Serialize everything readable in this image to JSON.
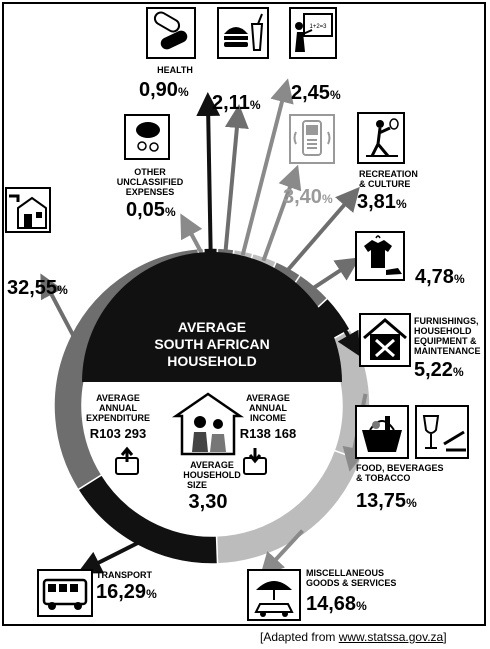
{
  "center": {
    "title_lines": [
      "AVERAGE",
      "SOUTH AFRICAN",
      "HOUSEHOLD"
    ],
    "expenditure_lines": [
      "AVERAGE",
      "ANNUAL",
      "EXPENDITURE"
    ],
    "expenditure_value": "R103 293",
    "income_lines": [
      "AVERAGE",
      "ANNUAL",
      "INCOME"
    ],
    "income_value": "R138 168",
    "size_lines": [
      "AVERAGE",
      "HOUSEHOLD",
      "SIZE"
    ],
    "size_value": "3,30"
  },
  "segments": [
    {
      "id": "housing",
      "pct_text": "32,55",
      "label_lines": [],
      "icon": "house-tap-icon"
    },
    {
      "id": "other",
      "pct_text": "0,05",
      "label_lines": [
        "OTHER",
        "UNCLASSIFIED",
        "EXPENSES"
      ],
      "icon": "piggy-bank-icon"
    },
    {
      "id": "health",
      "pct_text": "0,90",
      "label_lines": [
        "HEALTH"
      ],
      "icon": "pills-icon"
    },
    {
      "id": "food-out",
      "pct_text": "2,11",
      "label_lines": [],
      "icon": "burger-drink-icon"
    },
    {
      "id": "education",
      "pct_text": "2,45",
      "label_lines": [],
      "icon": "teacher-board-icon"
    },
    {
      "id": "communication",
      "pct_text": "3,40",
      "label_lines": [],
      "icon": "mobile-phone-icon"
    },
    {
      "id": "recreation",
      "pct_text": "3,81",
      "label_lines": [
        "RECREATION",
        "& CULTURE"
      ],
      "icon": "tennis-player-icon"
    },
    {
      "id": "clothing",
      "pct_text": "4,78",
      "label_lines": [],
      "icon": "shirt-shoe-icon"
    },
    {
      "id": "furnishings",
      "pct_text": "5,22",
      "label_lines": [
        "FURNISHINGS,",
        "HOUSEHOLD",
        "EQUIPMENT &",
        "MAINTENANCE"
      ],
      "icon": "house-tools-icon"
    },
    {
      "id": "food",
      "pct_text": "13,75",
      "label_lines": [
        "FOOD, BEVERAGES",
        "& TOBACCO"
      ],
      "icon": "food-basket-wine-icon"
    },
    {
      "id": "misc",
      "pct_text": "14,68",
      "label_lines": [
        "MISCELLANEOUS",
        "GOODS & SERVICES"
      ],
      "icon": "umbrella-car-icon"
    },
    {
      "id": "transport",
      "pct_text": "16,29",
      "label_lines": [
        "TRANSPORT"
      ],
      "icon": "bus-icon"
    }
  ],
  "percent_sign": "%",
  "source": {
    "prefix": "[Adapted from ",
    "link": "www.statssa.gov.za",
    "suffix": "]"
  },
  "colors": {
    "dark": "#111111",
    "mid": "#6e6e6e",
    "light": "#bcbcbc",
    "ring_gap": "#ffffff"
  }
}
